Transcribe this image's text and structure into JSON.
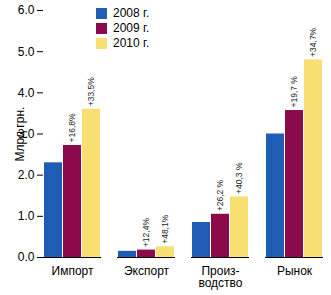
{
  "chart_data": {
    "type": "bar",
    "y_label": "Млрд грн.",
    "categories": [
      "Импорт",
      "Экспорт",
      "Произ-\nводство",
      "Рынок"
    ],
    "series": [
      {
        "name": "2008 г.",
        "color": "#1f5db4",
        "values": [
          2.3,
          0.15,
          0.85,
          3.0
        ],
        "annotations": [
          null,
          null,
          null,
          null
        ]
      },
      {
        "name": "2009 г.",
        "color": "#8c0a4b",
        "values": [
          2.72,
          0.18,
          1.05,
          3.57
        ],
        "annotations": [
          "+16,8%",
          "+12,4%",
          "+26,2 %",
          "+19,7 %"
        ]
      },
      {
        "name": "2010 г.",
        "color": "#f7df72",
        "values": [
          3.6,
          0.26,
          1.47,
          4.8
        ],
        "annotations": [
          "+33,5%",
          "+48,1%",
          "+40,3 %",
          "+34,7%"
        ]
      }
    ],
    "ylim": [
      0,
      6
    ],
    "yticks": [
      0,
      1,
      2,
      3,
      4,
      5,
      6
    ],
    "grid": false,
    "legend": "top-left"
  }
}
